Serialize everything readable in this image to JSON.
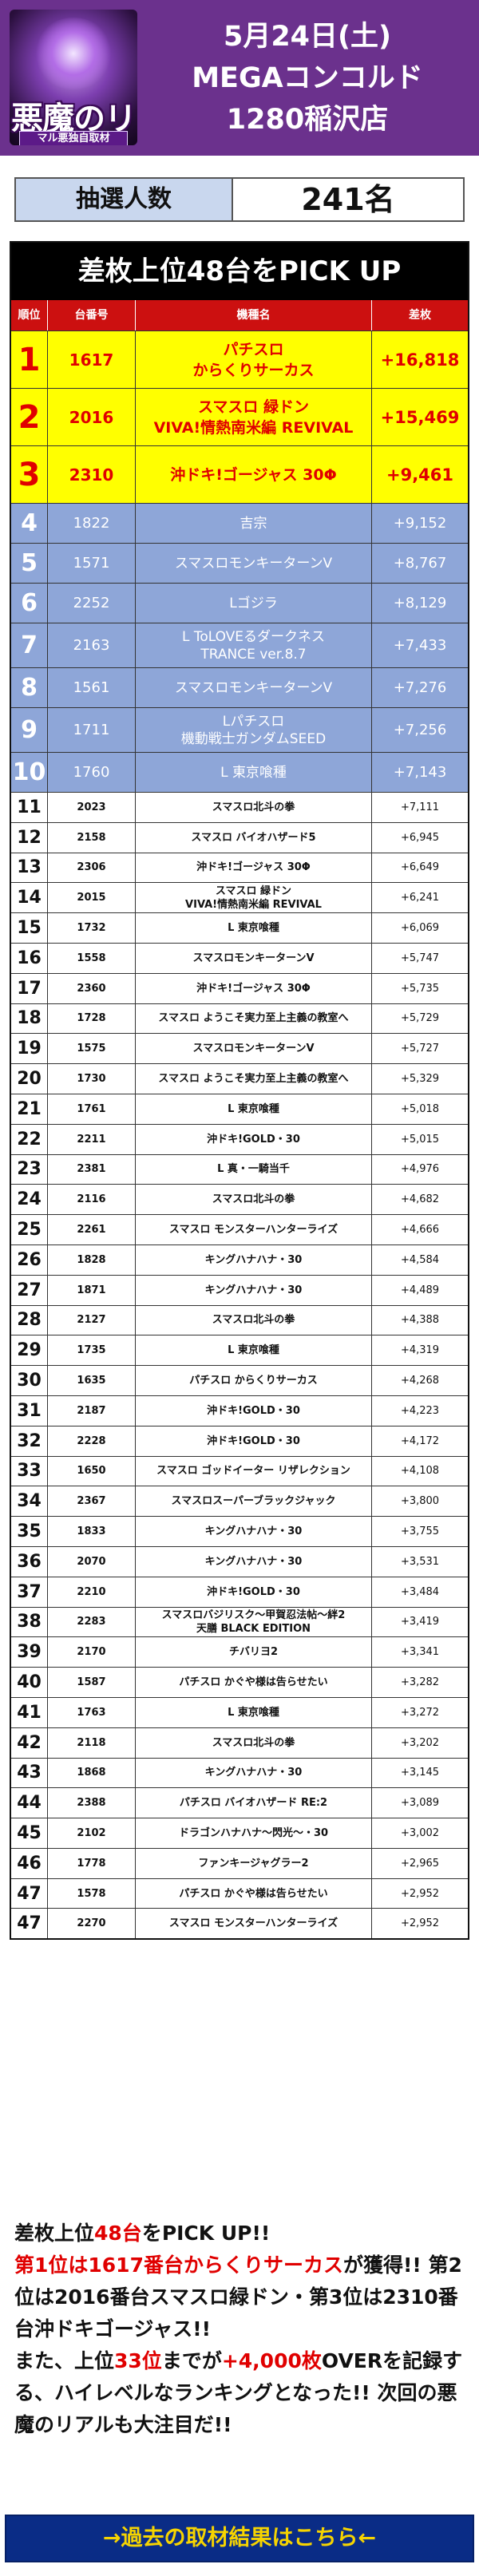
{
  "header": {
    "logo_text": "悪魔のリアル",
    "logo_sub": "マル悪独自取材",
    "date": "5月24日(土)",
    "store": "MEGAコンコルド",
    "branch": "1280稲沢店"
  },
  "lottery": {
    "label": "抽選人数",
    "value": "241名"
  },
  "table": {
    "title": "差枚上位48台をPICK UP",
    "headers": {
      "rank": "順位",
      "number": "台番号",
      "name": "機種名",
      "diff": "差枚"
    },
    "rows": [
      {
        "rank": "1",
        "number": "1617",
        "name": "パチスロ\nからくりサーカス",
        "diff": "+16,818"
      },
      {
        "rank": "2",
        "number": "2016",
        "name": "スマスロ 緑ドン\nVIVA!情熱南米編 REVIVAL",
        "diff": "+15,469"
      },
      {
        "rank": "3",
        "number": "2310",
        "name": "沖ドキ!ゴージャス 30Φ",
        "diff": "+9,461"
      },
      {
        "rank": "4",
        "number": "1822",
        "name": "吉宗",
        "diff": "+9,152"
      },
      {
        "rank": "5",
        "number": "1571",
        "name": "スマスロモンキーターンV",
        "diff": "+8,767"
      },
      {
        "rank": "6",
        "number": "2252",
        "name": "Lゴジラ",
        "diff": "+8,129"
      },
      {
        "rank": "7",
        "number": "2163",
        "name": "L ToLOVEるダークネス\nTRANCE ver.8.7",
        "diff": "+7,433"
      },
      {
        "rank": "8",
        "number": "1561",
        "name": "スマスロモンキーターンV",
        "diff": "+7,276"
      },
      {
        "rank": "9",
        "number": "1711",
        "name": "Lパチスロ\n機動戦士ガンダムSEED",
        "diff": "+7,256"
      },
      {
        "rank": "10",
        "number": "1760",
        "name": "L 東京喰種",
        "diff": "+7,143"
      },
      {
        "rank": "11",
        "number": "2023",
        "name": "スマスロ北斗の拳",
        "diff": "+7,111"
      },
      {
        "rank": "12",
        "number": "2158",
        "name": "スマスロ バイオハザード5",
        "diff": "+6,945"
      },
      {
        "rank": "13",
        "number": "2306",
        "name": "沖ドキ!ゴージャス 30Φ",
        "diff": "+6,649"
      },
      {
        "rank": "14",
        "number": "2015",
        "name": "スマスロ 緑ドン\nVIVA!情熱南米編 REVIVAL",
        "diff": "+6,241"
      },
      {
        "rank": "15",
        "number": "1732",
        "name": "L 東京喰種",
        "diff": "+6,069"
      },
      {
        "rank": "16",
        "number": "1558",
        "name": "スマスロモンキーターンV",
        "diff": "+5,747"
      },
      {
        "rank": "17",
        "number": "2360",
        "name": "沖ドキ!ゴージャス 30Φ",
        "diff": "+5,735"
      },
      {
        "rank": "18",
        "number": "1728",
        "name": "スマスロ ようこそ実力至上主義の教室へ",
        "diff": "+5,729"
      },
      {
        "rank": "19",
        "number": "1575",
        "name": "スマスロモンキーターンV",
        "diff": "+5,727"
      },
      {
        "rank": "20",
        "number": "1730",
        "name": "スマスロ ようこそ実力至上主義の教室へ",
        "diff": "+5,329"
      },
      {
        "rank": "21",
        "number": "1761",
        "name": "L 東京喰種",
        "diff": "+5,018"
      },
      {
        "rank": "22",
        "number": "2211",
        "name": "沖ドキ!GOLD・30",
        "diff": "+5,015"
      },
      {
        "rank": "23",
        "number": "2381",
        "name": "L 真・一騎当千",
        "diff": "+4,976"
      },
      {
        "rank": "24",
        "number": "2116",
        "name": "スマスロ北斗の拳",
        "diff": "+4,682"
      },
      {
        "rank": "25",
        "number": "2261",
        "name": "スマスロ モンスターハンターライズ",
        "diff": "+4,666"
      },
      {
        "rank": "26",
        "number": "1828",
        "name": "キングハナハナ・30",
        "diff": "+4,584"
      },
      {
        "rank": "27",
        "number": "1871",
        "name": "キングハナハナ・30",
        "diff": "+4,489"
      },
      {
        "rank": "28",
        "number": "2127",
        "name": "スマスロ北斗の拳",
        "diff": "+4,388"
      },
      {
        "rank": "29",
        "number": "1735",
        "name": "L 東京喰種",
        "diff": "+4,319"
      },
      {
        "rank": "30",
        "number": "1635",
        "name": "パチスロ からくりサーカス",
        "diff": "+4,268"
      },
      {
        "rank": "31",
        "number": "2187",
        "name": "沖ドキ!GOLD・30",
        "diff": "+4,223"
      },
      {
        "rank": "32",
        "number": "2228",
        "name": "沖ドキ!GOLD・30",
        "diff": "+4,172"
      },
      {
        "rank": "33",
        "number": "1650",
        "name": "スマスロ ゴッドイーター リザレクション",
        "diff": "+4,108"
      },
      {
        "rank": "34",
        "number": "2367",
        "name": "スマスロスーパーブラックジャック",
        "diff": "+3,800"
      },
      {
        "rank": "35",
        "number": "1833",
        "name": "キングハナハナ・30",
        "diff": "+3,755"
      },
      {
        "rank": "36",
        "number": "2070",
        "name": "キングハナハナ・30",
        "diff": "+3,531"
      },
      {
        "rank": "37",
        "number": "2210",
        "name": "沖ドキ!GOLD・30",
        "diff": "+3,484"
      },
      {
        "rank": "38",
        "number": "2283",
        "name": "スマスロバジリスク〜甲賀忍法帖〜絆2\n天膳 BLACK EDITION",
        "diff": "+3,419"
      },
      {
        "rank": "39",
        "number": "2170",
        "name": "チバリヨ2",
        "diff": "+3,341"
      },
      {
        "rank": "40",
        "number": "1587",
        "name": "パチスロ かぐや様は告らせたい",
        "diff": "+3,282"
      },
      {
        "rank": "41",
        "number": "1763",
        "name": "L 東京喰種",
        "diff": "+3,272"
      },
      {
        "rank": "42",
        "number": "2118",
        "name": "スマスロ北斗の拳",
        "diff": "+3,202"
      },
      {
        "rank": "43",
        "number": "1868",
        "name": "キングハナハナ・30",
        "diff": "+3,145"
      },
      {
        "rank": "44",
        "number": "2388",
        "name": "パチスロ バイオハザード RE:2",
        "diff": "+3,089"
      },
      {
        "rank": "45",
        "number": "2102",
        "name": "ドラゴンハナハナ〜閃光〜・30",
        "diff": "+3,002"
      },
      {
        "rank": "46",
        "number": "1778",
        "name": "ファンキージャグラー2",
        "diff": "+2,965"
      },
      {
        "rank": "47",
        "number": "1578",
        "name": "パチスロ かぐや様は告らせたい",
        "diff": "+2,952"
      },
      {
        "rank": "47",
        "number": "2270",
        "name": "スマスロ モンスターハンターライズ",
        "diff": "+2,952"
      }
    ]
  },
  "summary": {
    "p1": "差枚上位",
    "p2": "48台",
    "p3": "をPICK UP!!",
    "p4": "第1位は1617番台からくりサーカス",
    "p5": "が獲得!! 第2位は2016番台スマスロ緑ドン・第3位は2310番台沖ドキゴージャス!!",
    "p6": "また、上位",
    "p7": "33位",
    "p8": "までが",
    "p9": "+4,000枚",
    "p10": "OVERを記録する、ハイレベルなランキングとなった!! 次回の悪魔のリアルも大注目だ!!"
  },
  "link": {
    "label": "→過去の取材結果はこちら←"
  },
  "colors": {
    "header_bg": "#6b318d",
    "top3_bg": "#ffff00",
    "top10_bg": "#8ea6d8",
    "accent_red": "#e00000",
    "link_bg": "#0a2c86",
    "link_text": "#f6d400"
  }
}
